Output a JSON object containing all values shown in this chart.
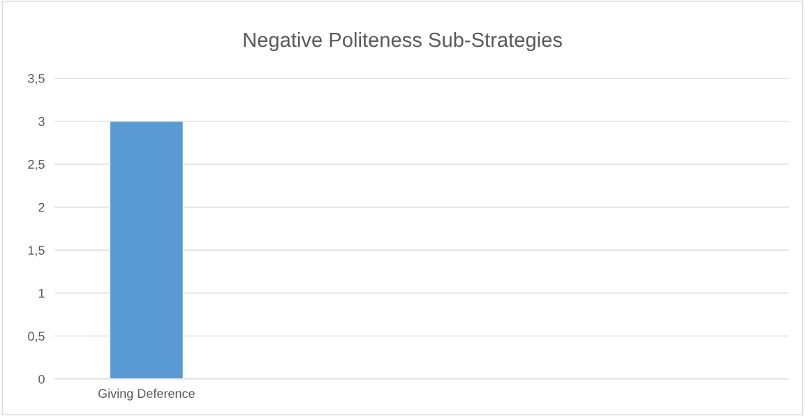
{
  "chart_data": {
    "type": "bar",
    "title": "Negative Politeness Sub-Strategies",
    "categories": [
      "Giving Deference",
      null,
      null,
      null
    ],
    "values": [
      3,
      null,
      null,
      null
    ],
    "color": "#5b9bd5",
    "ylim": [
      0,
      3.5
    ],
    "yticks": [
      0,
      {
        "value": 0.5,
        "label": "0,5"
      },
      1,
      {
        "value": 1.5,
        "label": "1,5"
      },
      2,
      {
        "value": 2.5,
        "label": "2,5"
      },
      3,
      {
        "value": 3.5,
        "label": "3,5"
      }
    ],
    "grid": "y",
    "legend": false
  }
}
